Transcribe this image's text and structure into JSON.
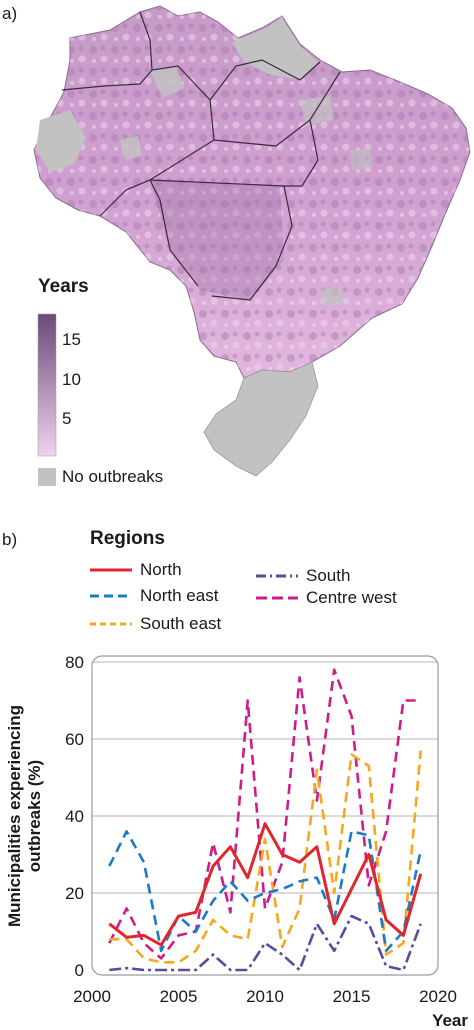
{
  "panel_a": {
    "label": "a)",
    "legend": {
      "title": "Years",
      "ticks": [
        "15",
        "10",
        "5"
      ],
      "no_outbreak_label": "No outbreaks",
      "color_low": "#f0d2ec",
      "color_high": "#6b4a7a",
      "no_outbreak_color": "#c2c2c2"
    }
  },
  "panel_b": {
    "label": "b)",
    "legend_title": "Regions"
  },
  "chart_data": {
    "type": "line",
    "xlabel": "Year",
    "ylabel": "Municipalities experiencing outbreaks (%)",
    "ylabel_lines": [
      "Municipalities experiencing",
      "outbreaks (%)"
    ],
    "xlim": [
      2000,
      2020
    ],
    "ylim": [
      0,
      80
    ],
    "xticks": [
      2000,
      2005,
      2010,
      2015,
      2020
    ],
    "yticks": [
      0,
      20,
      40,
      60,
      80
    ],
    "grid": "horizontal",
    "x": [
      2001,
      2002,
      2003,
      2004,
      2005,
      2006,
      2007,
      2008,
      2009,
      2010,
      2011,
      2012,
      2013,
      2014,
      2015,
      2016,
      2017,
      2018,
      2019
    ],
    "series": [
      {
        "name": "North",
        "color": "#e0262b",
        "dash": "solid",
        "values": [
          12,
          8.5,
          9,
          6.5,
          14,
          15,
          27,
          32,
          24,
          38,
          30,
          28,
          32,
          12,
          21,
          30,
          13,
          9,
          25
        ]
      },
      {
        "name": "North east",
        "color": "#1a7bc4",
        "dash": "dashed",
        "values": [
          27,
          36,
          28,
          5,
          14,
          10,
          18,
          23,
          18,
          20,
          21,
          23,
          24,
          13,
          36,
          35,
          5,
          10,
          31
        ]
      },
      {
        "name": "South east",
        "color": "#f5a81c",
        "dash": "dashed",
        "values": [
          8,
          8,
          3,
          2,
          2,
          5,
          13,
          9,
          8,
          34,
          6,
          16,
          52,
          20,
          56,
          53,
          4,
          7,
          57
        ]
      },
      {
        "name": "South",
        "color": "#5c4a9a",
        "dash": "dashdot",
        "values": [
          0,
          0.5,
          0,
          0,
          0,
          0,
          4,
          0,
          0,
          7,
          4,
          0,
          12,
          5,
          14,
          12,
          1,
          0,
          12
        ]
      },
      {
        "name": "Centre west",
        "color": "#cc1d8a",
        "dash": "dashed",
        "values": [
          7,
          16,
          7,
          3,
          9,
          10,
          33,
          15,
          70,
          16,
          28,
          76,
          44,
          78,
          66,
          22,
          36,
          70,
          70
        ]
      }
    ]
  }
}
